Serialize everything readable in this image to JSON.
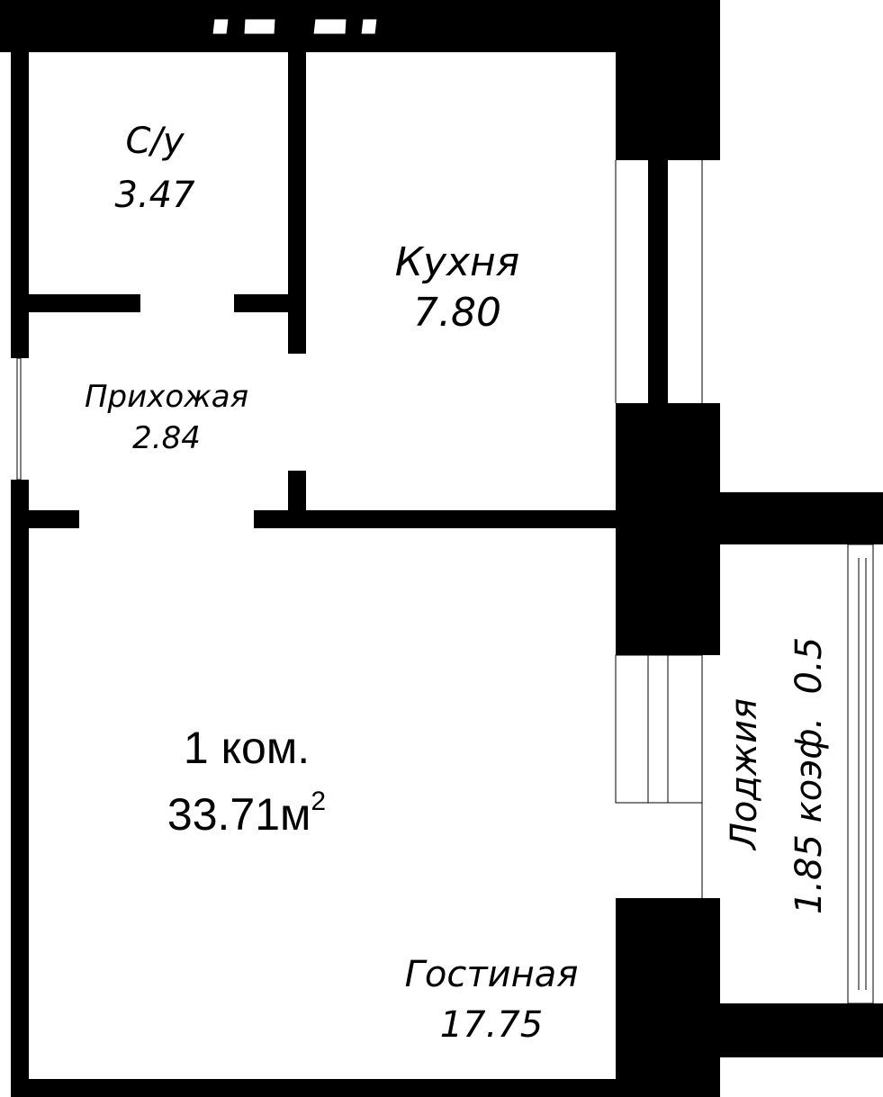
{
  "plan": {
    "apartment": {
      "rooms_label": "1 ком.",
      "total_area": "33.71м",
      "area_unit_sup": "2"
    },
    "rooms": [
      {
        "name": "С/у",
        "area": "3.47"
      },
      {
        "name": "Кухня",
        "area": "7.80"
      },
      {
        "name": "Прихожая",
        "area": "2.84"
      },
      {
        "name": "Гостиная",
        "area": "17.75"
      }
    ],
    "loggia": {
      "name": "Лоджия",
      "area_line": "1.85 коэф.  0.5"
    }
  }
}
